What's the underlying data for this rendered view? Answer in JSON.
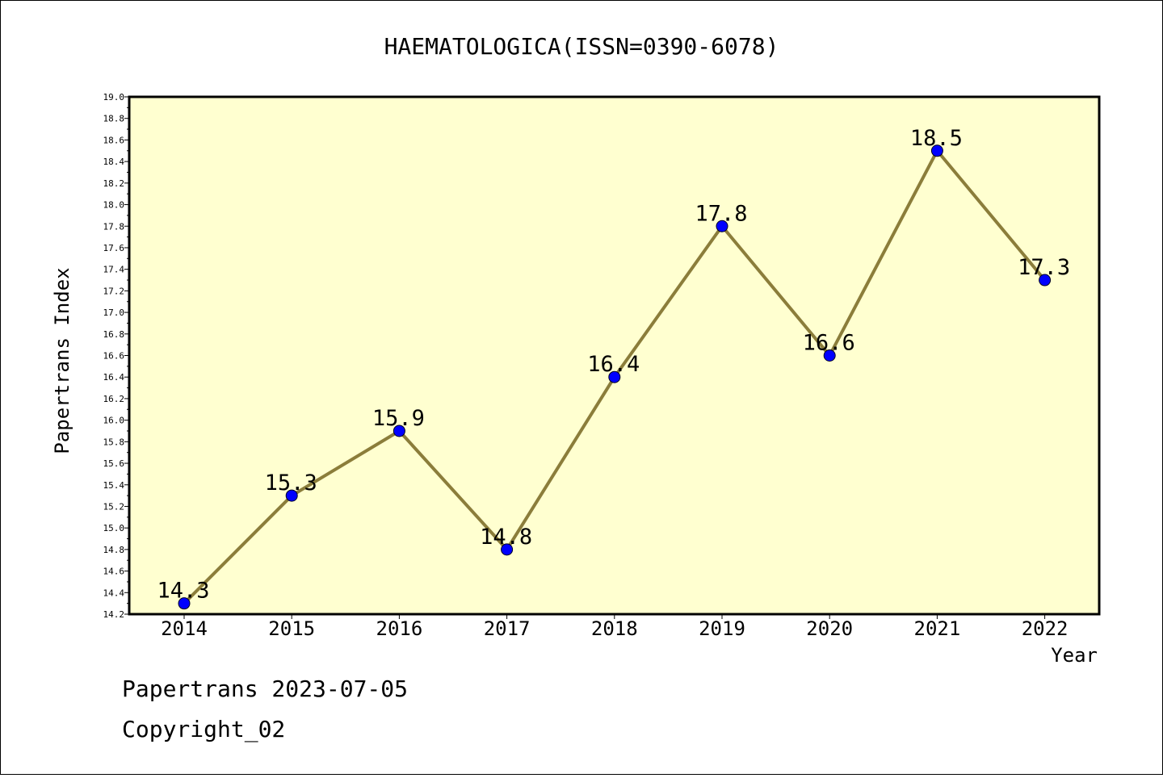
{
  "chart_data": {
    "type": "line",
    "title": "HAEMATOLOGICA(ISSN=0390-6078)",
    "xlabel": "Year",
    "ylabel": "Papertrans Index",
    "x": [
      "2014",
      "2015",
      "2016",
      "2017",
      "2018",
      "2019",
      "2020",
      "2021",
      "2022"
    ],
    "values": [
      14.3,
      15.3,
      15.9,
      14.8,
      16.4,
      17.8,
      16.6,
      18.5,
      17.3
    ],
    "data_labels": [
      "14.3",
      "15.3",
      "15.9",
      "14.8",
      "16.4",
      "17.8",
      "16.6",
      "18.5",
      "17.3"
    ],
    "ylim": [
      14.2,
      19.0
    ],
    "yticks": [
      "14.2",
      "14.4",
      "14.6",
      "14.8",
      "15.0",
      "15.2",
      "15.4",
      "15.6",
      "15.8",
      "16.0",
      "16.2",
      "16.4",
      "16.6",
      "16.8",
      "17.0",
      "17.2",
      "17.4",
      "17.6",
      "17.8",
      "18.0",
      "18.2",
      "18.4",
      "18.6",
      "18.8",
      "19.0"
    ],
    "grid": false,
    "colors": {
      "plot_background": "#ffffd0",
      "line": "#8b7d3a",
      "marker": "#0000ff"
    }
  },
  "footer": {
    "line1": "Papertrans 2023-07-05",
    "line2": "Copyright_02"
  }
}
